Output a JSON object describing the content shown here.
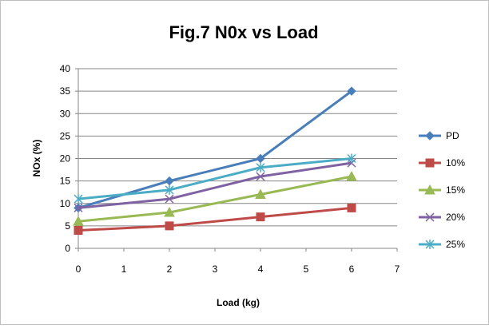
{
  "colors": {
    "PD": "#4a7ebb",
    "10%": "#be4b48",
    "15%": "#98b954",
    "20%": "#7e62a1",
    "25%": "#4bacc6"
  },
  "chart_data": {
    "type": "line",
    "title": "Fig.7  N0x vs Load",
    "xlabel": "Load (kg)",
    "ylabel": "NOx (%)",
    "xlim": [
      0,
      7
    ],
    "ylim": [
      0,
      40
    ],
    "x_ticks": [
      0,
      1,
      2,
      3,
      4,
      5,
      6,
      7
    ],
    "y_ticks": [
      0,
      5,
      10,
      15,
      20,
      25,
      30,
      35,
      40
    ],
    "grid": "horizontal major gridlines",
    "legend_position": "right",
    "x": [
      0,
      2,
      4,
      6
    ],
    "series": [
      {
        "name": "PD",
        "marker": "diamond",
        "values": [
          9,
          15,
          20,
          35
        ]
      },
      {
        "name": "10%",
        "marker": "square",
        "values": [
          4,
          5,
          7,
          9
        ]
      },
      {
        "name": "15%",
        "marker": "triangle",
        "values": [
          6,
          8,
          12,
          16
        ]
      },
      {
        "name": "20%",
        "marker": "x",
        "values": [
          9,
          11,
          16,
          19
        ]
      },
      {
        "name": "25%",
        "marker": "asterisk",
        "values": [
          11,
          13,
          18,
          20
        ]
      }
    ]
  }
}
